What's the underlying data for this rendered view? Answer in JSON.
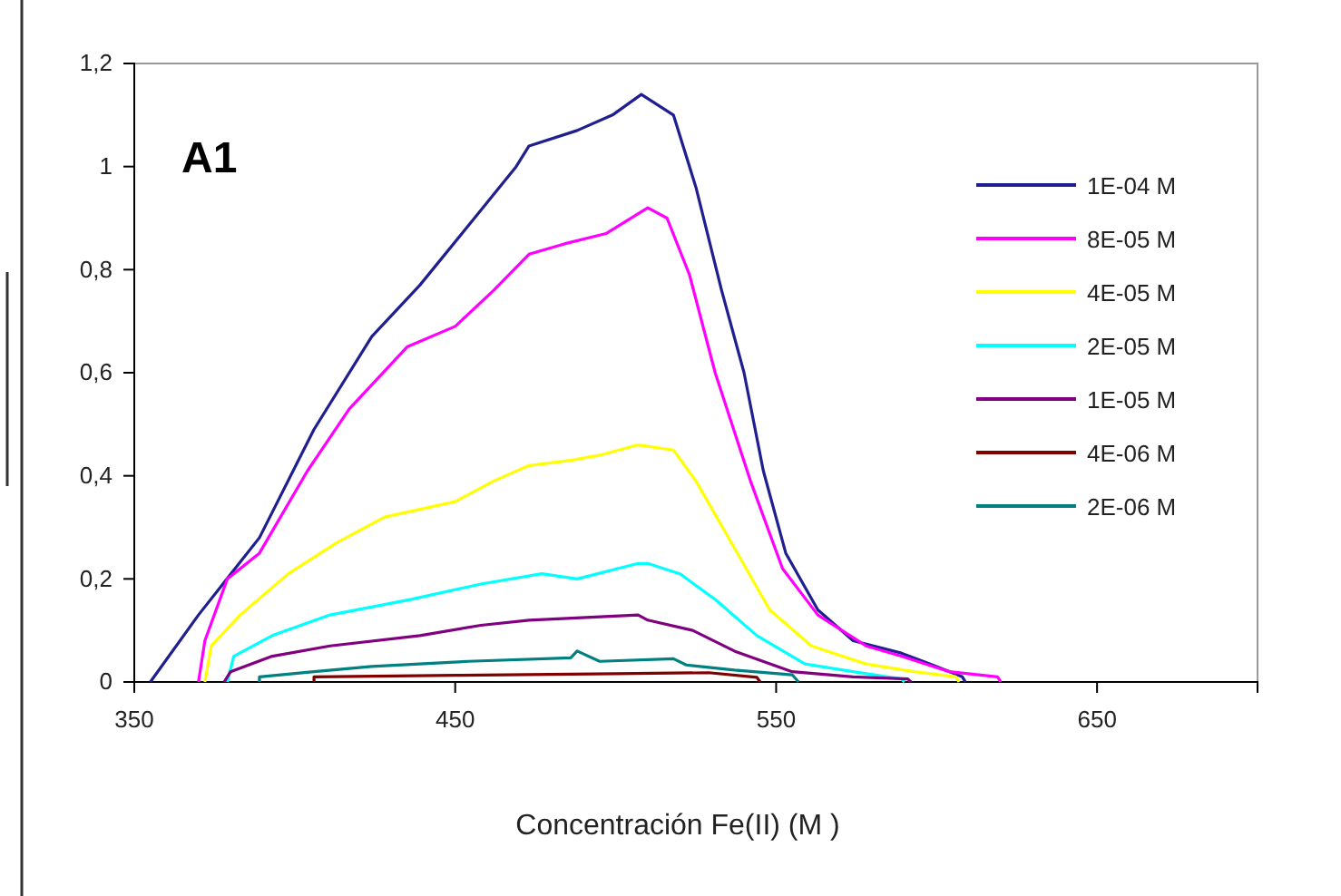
{
  "chart_data": {
    "type": "line",
    "xlabel": "Concentración Fe(II) (M )",
    "annotations": [
      "A1"
    ],
    "xlim": [
      350,
      700
    ],
    "xticks": [
      350,
      450,
      550,
      650
    ],
    "ylim": [
      0,
      1.2
    ],
    "yticks": [
      0,
      {
        "value": 0.2,
        "label": "0,2"
      },
      {
        "value": 0.4,
        "label": "0,4"
      },
      {
        "value": 0.6,
        "label": "0,6"
      },
      {
        "value": 0.8,
        "label": "0,8"
      },
      1,
      {
        "value": 1.2,
        "label": "1,2"
      }
    ],
    "grid": false,
    "legend": "right",
    "line_style": "solid",
    "marker": "none",
    "series": [
      {
        "name": "1E-04 M",
        "color": "#1f1f8f",
        "x": [
          355,
          370,
          389,
          406,
          424,
          439,
          456,
          469,
          473,
          488,
          499,
          508,
          518,
          525,
          533,
          540,
          546,
          553,
          563,
          574,
          589,
          600,
          608,
          609
        ],
        "values": [
          0,
          0.13,
          0.28,
          0.49,
          0.67,
          0.77,
          0.9,
          1.0,
          1.04,
          1.07,
          1.1,
          1.14,
          1.1,
          0.96,
          0.76,
          0.6,
          0.41,
          0.25,
          0.14,
          0.08,
          0.056,
          0.03,
          0.01,
          0
        ]
      },
      {
        "name": "8E-05 M",
        "color": "#ff00ff",
        "x": [
          370,
          372,
          379,
          389,
          404,
          417,
          435,
          450,
          462,
          473,
          484,
          497,
          510,
          516,
          523,
          531,
          542,
          552,
          563,
          578,
          589,
          604,
          619,
          620
        ],
        "values": [
          0,
          0.08,
          0.2,
          0.25,
          0.41,
          0.53,
          0.65,
          0.69,
          0.76,
          0.83,
          0.85,
          0.87,
          0.92,
          0.9,
          0.79,
          0.6,
          0.39,
          0.22,
          0.13,
          0.07,
          0.05,
          0.02,
          0.01,
          0
        ]
      },
      {
        "name": "4E-05 M",
        "color": "#ffff00",
        "x": [
          372,
          374,
          383,
          398,
          413,
          428,
          450,
          462,
          473,
          486,
          495,
          507,
          518,
          525,
          537,
          548,
          561,
          578,
          593,
          606,
          607
        ],
        "values": [
          0,
          0.07,
          0.13,
          0.21,
          0.27,
          0.32,
          0.35,
          0.39,
          0.42,
          0.43,
          0.44,
          0.46,
          0.45,
          0.39,
          0.26,
          0.14,
          0.07,
          0.035,
          0.02,
          0.01,
          0
        ]
      },
      {
        "name": "2E-05 M",
        "color": "#00ffff",
        "x": [
          379,
          381,
          393,
          411,
          436,
          458,
          477,
          488,
          507,
          510,
          520,
          531,
          544,
          559,
          574,
          589,
          590
        ],
        "values": [
          0,
          0.05,
          0.09,
          0.13,
          0.16,
          0.19,
          0.21,
          0.2,
          0.23,
          0.23,
          0.21,
          0.16,
          0.09,
          0.035,
          0.02,
          0.006,
          0
        ]
      },
      {
        "name": "1E-05 M",
        "color": "#800080",
        "x": [
          378,
          380,
          393,
          411,
          439,
          458,
          473,
          507,
          510,
          524,
          537,
          555,
          574,
          591,
          592
        ],
        "values": [
          0,
          0.02,
          0.05,
          0.07,
          0.09,
          0.11,
          0.12,
          0.13,
          0.12,
          0.1,
          0.06,
          0.02,
          0.01,
          0.006,
          0
        ]
      },
      {
        "name": "4E-06 M",
        "color": "#800000",
        "x": [
          406,
          406,
          450,
          500,
          529,
          544,
          545
        ],
        "values": [
          0,
          0.01,
          0.013,
          0.016,
          0.018,
          0.009,
          0
        ]
      },
      {
        "name": "2E-06 M",
        "color": "#008080",
        "x": [
          389,
          389,
          406,
          424,
          454,
          486,
          488,
          495,
          518,
          522,
          537,
          555,
          557
        ],
        "values": [
          0,
          0.01,
          0.02,
          0.03,
          0.04,
          0.047,
          0.06,
          0.04,
          0.045,
          0.033,
          0.023,
          0.014,
          0
        ]
      }
    ]
  }
}
